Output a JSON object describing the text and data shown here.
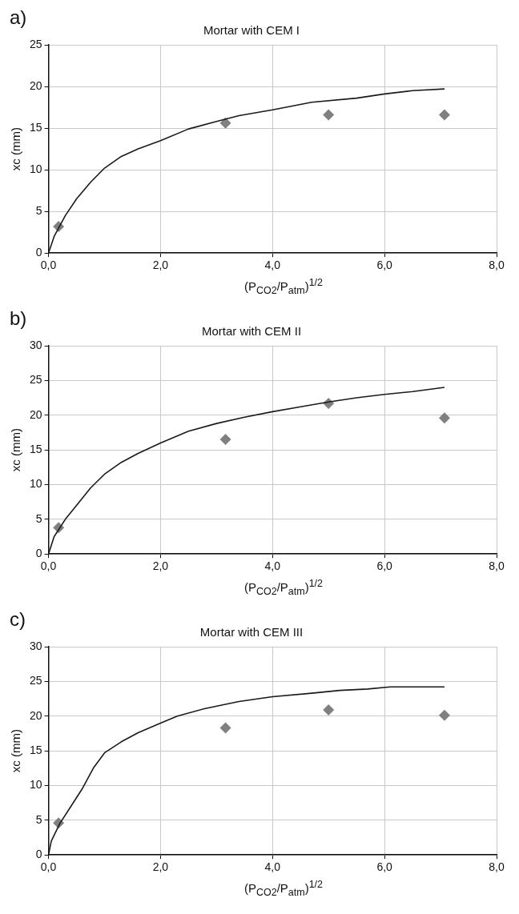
{
  "chart_data": [
    {
      "type": "line",
      "title": "Mortar with CEM I",
      "xlabel": "(P$_{CO2}$/P$_{atm}$)$^{1/2}$",
      "ylabel": "xc (mm)",
      "annotations": [
        "a)"
      ],
      "xlim": [
        0,
        8
      ],
      "xticks": [
        {
          "value": 0,
          "label": "0,0"
        },
        {
          "value": 2,
          "label": "2,0"
        },
        {
          "value": 4,
          "label": "4,0"
        },
        {
          "value": 6,
          "label": "6,0"
        },
        {
          "value": 8,
          "label": "8,0"
        }
      ],
      "ylim": [
        0,
        25
      ],
      "yticks": [
        0,
        5,
        10,
        15,
        20,
        25
      ],
      "grid": true,
      "series": [
        {
          "color": "#1a1a1a",
          "marker": "none",
          "x": [
            0,
            0.1,
            0.3,
            0.5,
            0.75,
            1,
            1.3,
            1.6,
            2,
            2.5,
            3,
            3.4,
            4,
            4.7,
            5.5,
            6,
            6.5,
            7.07
          ],
          "values": [
            0,
            2,
            4.5,
            6.5,
            8.5,
            10.2,
            11.6,
            12.5,
            13.5,
            14.9,
            15.8,
            16.5,
            17.2,
            18.1,
            18.6,
            19.1,
            19.5,
            19.7
          ]
        },
        {
          "type": "scatter",
          "color": "#808080",
          "marker": "diamond",
          "x": [
            0.18,
            3.16,
            5,
            7.07
          ],
          "values": [
            3.2,
            15.6,
            16.6,
            16.6
          ]
        }
      ]
    },
    {
      "type": "line",
      "title": "Mortar with CEM II",
      "xlabel": "(P$_{CO2}$/P$_{atm}$)$^{1/2}$",
      "ylabel": "xc (mm)",
      "annotations": [
        "b)"
      ],
      "xlim": [
        0,
        8
      ],
      "xticks": [
        {
          "value": 0,
          "label": "0,0"
        },
        {
          "value": 2,
          "label": "2,0"
        },
        {
          "value": 4,
          "label": "4,0"
        },
        {
          "value": 6,
          "label": "6,0"
        },
        {
          "value": 8,
          "label": "8,0"
        }
      ],
      "ylim": [
        0,
        30
      ],
      "yticks": [
        0,
        5,
        10,
        15,
        20,
        25,
        30
      ],
      "grid": true,
      "series": [
        {
          "color": "#1a1a1a",
          "marker": "none",
          "x": [
            0,
            0.1,
            0.3,
            0.5,
            0.75,
            1,
            1.3,
            1.6,
            2,
            2.5,
            3,
            3.5,
            4,
            4.5,
            5,
            5.5,
            6,
            6.5,
            7.07
          ],
          "values": [
            0,
            2.5,
            5,
            7,
            9.5,
            11.5,
            13.2,
            14.5,
            16,
            17.7,
            18.8,
            19.7,
            20.5,
            21.2,
            21.9,
            22.5,
            23,
            23.4,
            24
          ]
        },
        {
          "type": "scatter",
          "color": "#808080",
          "marker": "diamond",
          "x": [
            0.18,
            3.16,
            5,
            7.07
          ],
          "values": [
            3.8,
            16.5,
            21.7,
            19.6
          ]
        }
      ]
    },
    {
      "type": "line",
      "title": "Mortar with CEM III",
      "xlabel": "(P$_{CO2}$/P$_{atm}$)$^{1/2}$",
      "ylabel": "xc (mm)",
      "annotations": [
        "c)"
      ],
      "xlim": [
        0,
        8
      ],
      "xticks": [
        {
          "value": 0,
          "label": "0,0"
        },
        {
          "value": 2,
          "label": "2,0"
        },
        {
          "value": 4,
          "label": "4,0"
        },
        {
          "value": 6,
          "label": "6,0"
        },
        {
          "value": 8,
          "label": "8,0"
        }
      ],
      "ylim": [
        0,
        30
      ],
      "yticks": [
        0,
        5,
        10,
        15,
        20,
        25,
        30
      ],
      "grid": true,
      "series": [
        {
          "color": "#1a1a1a",
          "marker": "none",
          "x": [
            0,
            0.05,
            0.2,
            0.4,
            0.6,
            0.8,
            1,
            1.3,
            1.6,
            2,
            2.3,
            2.8,
            3.4,
            4,
            4.7,
            5.2,
            5.7,
            6.1,
            7.07
          ],
          "values": [
            0,
            2,
            4.5,
            7,
            9.5,
            12.5,
            14.7,
            16.3,
            17.6,
            19,
            20,
            21.1,
            22.1,
            22.8,
            23.3,
            23.7,
            23.9,
            24.2,
            24.2
          ]
        },
        {
          "type": "scatter",
          "color": "#808080",
          "marker": "diamond",
          "x": [
            0.18,
            3.16,
            5,
            7.07
          ],
          "values": [
            4.6,
            18.3,
            20.9,
            20.1
          ]
        }
      ]
    }
  ]
}
